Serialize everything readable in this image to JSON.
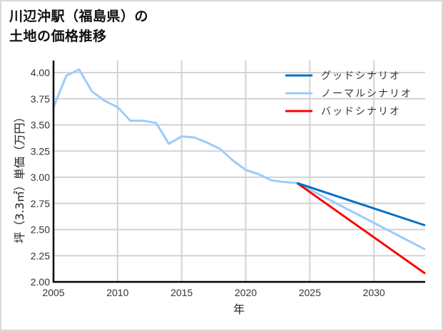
{
  "title_line1": "川辺沖駅（福島県）の",
  "title_line2": "土地の価格推移",
  "chart_data": {
    "type": "line",
    "title": "川辺沖駅（福島県）の土地の価格推移",
    "xlabel": "年",
    "ylabel": "坪（3.3㎡）単価（万円）",
    "xlim": [
      2005,
      2034
    ],
    "ylim": [
      2.0,
      4.1
    ],
    "x_ticks": [
      2005,
      2010,
      2015,
      2020,
      2025,
      2030
    ],
    "y_ticks": [
      "2.00",
      "2.25",
      "2.50",
      "2.75",
      "3.00",
      "3.25",
      "3.50",
      "3.75",
      "4.00"
    ],
    "grid": true,
    "legend_position": "upper right",
    "series": [
      {
        "name": "グッドシナリオ",
        "color": "#0070c8",
        "x": [
          2024,
          2034
        ],
        "values": [
          2.945,
          2.54
        ]
      },
      {
        "name": "ノーマルシナリオ",
        "color": "#99ccff",
        "x": [
          2005,
          2006,
          2007,
          2008,
          2009,
          2010,
          2011,
          2012,
          2013,
          2014,
          2015,
          2016,
          2017,
          2018,
          2019,
          2020,
          2021,
          2022,
          2023,
          2024,
          2034
        ],
        "values": [
          3.67,
          3.97,
          4.03,
          3.82,
          3.73,
          3.67,
          3.54,
          3.54,
          3.52,
          3.32,
          3.39,
          3.38,
          3.33,
          3.27,
          3.16,
          3.07,
          3.03,
          2.97,
          2.955,
          2.945,
          2.31
        ]
      },
      {
        "name": "バッドシナリオ",
        "color": "#ff0000",
        "x": [
          2024,
          2034
        ],
        "values": [
          2.945,
          2.08
        ]
      }
    ]
  }
}
